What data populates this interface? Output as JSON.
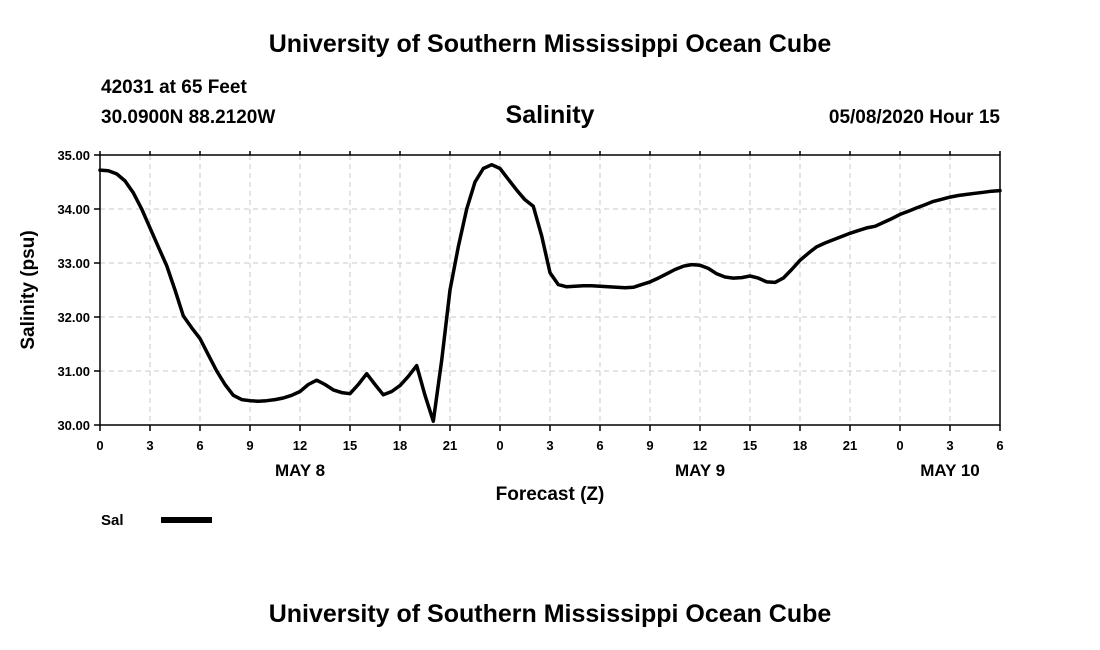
{
  "header": {
    "title": "University of Southern Mississippi Ocean Cube",
    "station": "42031 at 65 Feet",
    "location": "30.0900N 88.2120W",
    "datetime": "05/08/2020 Hour 15"
  },
  "footer": {
    "title": "University of Southern Mississippi Ocean Cube"
  },
  "chart_data": {
    "type": "line",
    "title": "Salinity",
    "xlabel": "Forecast (Z)",
    "ylabel": "Salinity (psu)",
    "x_unit": "hours from 05/08/2020 00Z",
    "xlim": [
      0,
      54
    ],
    "ylim": [
      30,
      35
    ],
    "grid": true,
    "y_ticks": [
      "30.00",
      "31.00",
      "32.00",
      "33.00",
      "34.00",
      "35.00"
    ],
    "x_ticks": [
      {
        "x": 0,
        "label": "0"
      },
      {
        "x": 3,
        "label": "3"
      },
      {
        "x": 6,
        "label": "6"
      },
      {
        "x": 9,
        "label": "9"
      },
      {
        "x": 12,
        "label": "12"
      },
      {
        "x": 15,
        "label": "15"
      },
      {
        "x": 18,
        "label": "18"
      },
      {
        "x": 21,
        "label": "21"
      },
      {
        "x": 24,
        "label": "0"
      },
      {
        "x": 27,
        "label": "3"
      },
      {
        "x": 30,
        "label": "6"
      },
      {
        "x": 33,
        "label": "9"
      },
      {
        "x": 36,
        "label": "12"
      },
      {
        "x": 39,
        "label": "15"
      },
      {
        "x": 42,
        "label": "18"
      },
      {
        "x": 45,
        "label": "21"
      },
      {
        "x": 48,
        "label": "0"
      },
      {
        "x": 51,
        "label": "3"
      },
      {
        "x": 54,
        "label": "6"
      }
    ],
    "day_labels": [
      {
        "x": 12,
        "label": "MAY 8"
      },
      {
        "x": 36,
        "label": "MAY 9"
      },
      {
        "x": 51,
        "label": "MAY 10"
      }
    ],
    "legend": {
      "placement": "bottom-left",
      "entries": [
        "Sal"
      ]
    },
    "series": [
      {
        "name": "Sal",
        "color": "#000000",
        "x": [
          0,
          0.5,
          1,
          1.5,
          2,
          2.5,
          3,
          3.5,
          4,
          4.5,
          5,
          5.5,
          6,
          6.5,
          7,
          7.5,
          8,
          8.5,
          9,
          9.5,
          10,
          10.5,
          11,
          11.5,
          12,
          12.5,
          13,
          13.5,
          14,
          14.5,
          15,
          15.5,
          16,
          16.5,
          17,
          17.5,
          18,
          18.5,
          19,
          19.5,
          20,
          20.5,
          21,
          21.5,
          22,
          22.5,
          23,
          23.5,
          24,
          24.5,
          25,
          25.5,
          26,
          26.5,
          27,
          27.5,
          28,
          28.5,
          29,
          29.5,
          30,
          30.5,
          31,
          31.5,
          32,
          32.5,
          33,
          33.5,
          34,
          34.5,
          35,
          35.5,
          36,
          36.5,
          37,
          37.5,
          38,
          38.5,
          39,
          39.5,
          40,
          40.5,
          41,
          41.5,
          42,
          42.5,
          43,
          43.5,
          44,
          44.5,
          45,
          45.5,
          46,
          46.5,
          47,
          47.5,
          48,
          48.5,
          49,
          49.5,
          50,
          50.5,
          51,
          51.5,
          52,
          52.5,
          53,
          53.5,
          54
        ],
        "y": [
          34.72,
          34.71,
          34.65,
          34.52,
          34.3,
          34.0,
          33.65,
          33.3,
          32.95,
          32.5,
          32.02,
          31.8,
          31.6,
          31.3,
          31.0,
          30.75,
          30.55,
          30.47,
          30.45,
          30.44,
          30.45,
          30.47,
          30.5,
          30.55,
          30.62,
          30.75,
          30.83,
          30.75,
          30.65,
          30.6,
          30.58,
          30.75,
          30.95,
          30.75,
          30.56,
          30.62,
          30.73,
          30.9,
          31.1,
          30.55,
          30.07,
          31.2,
          32.5,
          33.3,
          34.0,
          34.5,
          34.75,
          34.82,
          34.75,
          34.55,
          34.35,
          34.17,
          34.05,
          33.5,
          32.82,
          32.6,
          32.56,
          32.57,
          32.58,
          32.58,
          32.57,
          32.56,
          32.55,
          32.54,
          32.55,
          32.6,
          32.65,
          32.72,
          32.8,
          32.88,
          32.94,
          32.97,
          32.96,
          32.9,
          32.8,
          32.74,
          32.72,
          32.73,
          32.76,
          32.72,
          32.65,
          32.64,
          32.72,
          32.88,
          33.05,
          33.18,
          33.3,
          33.37,
          33.43,
          33.49,
          33.55,
          33.6,
          33.65,
          33.68,
          33.75,
          33.82,
          33.9,
          33.96,
          34.02,
          34.08,
          34.14,
          34.18,
          34.22,
          34.25,
          34.27,
          34.29,
          34.31,
          34.33,
          34.34
        ]
      }
    ]
  }
}
